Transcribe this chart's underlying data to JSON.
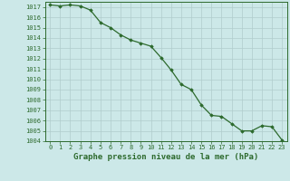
{
  "x": [
    0,
    1,
    2,
    3,
    4,
    5,
    6,
    7,
    8,
    9,
    10,
    11,
    12,
    13,
    14,
    15,
    16,
    17,
    18,
    19,
    20,
    21,
    22,
    23
  ],
  "y": [
    1017.2,
    1017.1,
    1017.2,
    1017.1,
    1016.7,
    1015.5,
    1015.0,
    1014.3,
    1013.8,
    1013.5,
    1013.2,
    1012.1,
    1010.9,
    1009.5,
    1009.0,
    1007.5,
    1006.5,
    1006.4,
    1005.7,
    1005.0,
    1005.0,
    1005.5,
    1005.4,
    1004.1
  ],
  "ylim": [
    1004,
    1017.5
  ],
  "xlim": [
    -0.5,
    23.5
  ],
  "yticks": [
    1004,
    1005,
    1006,
    1007,
    1008,
    1009,
    1010,
    1011,
    1012,
    1013,
    1014,
    1015,
    1016,
    1017
  ],
  "xticks": [
    0,
    1,
    2,
    3,
    4,
    5,
    6,
    7,
    8,
    9,
    10,
    11,
    12,
    13,
    14,
    15,
    16,
    17,
    18,
    19,
    20,
    21,
    22,
    23
  ],
  "xlabel": "Graphe pression niveau de la mer (hPa)",
  "line_color": "#2d6a2d",
  "marker": "D",
  "marker_size": 1.8,
  "line_width": 0.9,
  "bg_color": "#cce8e8",
  "grid_color": "#b0cccc",
  "tick_label_color": "#2d6a2d",
  "xlabel_color": "#2d6a2d",
  "xlabel_fontsize": 6.5,
  "tick_fontsize": 5.0
}
